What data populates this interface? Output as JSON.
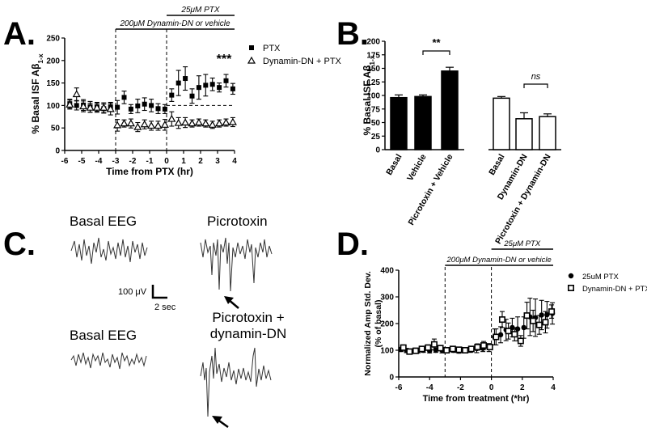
{
  "panels": {
    "a": {
      "letter": "A."
    },
    "b": {
      "letter": "B."
    },
    "c": {
      "letter": "C."
    },
    "d": {
      "letter": "D."
    }
  },
  "eeg": {
    "basal_top": "Basal EEG",
    "picrotoxin": "Picrotoxin",
    "basal_bottom": "Basal EEG",
    "picro_dyn_line1": "Picrotoxin +",
    "picro_dyn_line2": "dynamin-DN",
    "scale_v": "100 μV",
    "scale_t": "2 sec"
  },
  "chart_data": [
    {
      "panel": "A",
      "type": "scatter",
      "xlabel": "Time from PTX (hr)",
      "ylabel": "% Basal ISF Aβ1-x",
      "xlim": [
        -6,
        4
      ],
      "ylim": [
        0,
        250
      ],
      "xticks": [
        -6,
        -5,
        -4,
        -3,
        -2,
        -1,
        0,
        1,
        2,
        3,
        4
      ],
      "yticks": [
        0,
        50,
        100,
        150,
        200,
        250
      ],
      "legend_position": "top-right",
      "annotations": [
        "25μM PTX",
        "200μM Dynamin-DN or vehicle",
        "***"
      ],
      "series": [
        {
          "name": "PTX",
          "marker": "filled-square",
          "x": [
            -5.7,
            -5.3,
            -4.9,
            -4.5,
            -4.1,
            -3.7,
            -3.3,
            -2.9,
            -2.5,
            -2.1,
            -1.7,
            -1.3,
            -0.9,
            -0.5,
            -0.1,
            0.3,
            0.7,
            1.1,
            1.5,
            1.9,
            2.3,
            2.7,
            3.1,
            3.5,
            3.9
          ],
          "y": [
            104,
            100,
            101,
            97,
            97,
            93,
            97,
            96,
            118,
            92,
            99,
            103,
            100,
            93,
            92,
            123,
            150,
            160,
            121,
            140,
            145,
            147,
            140,
            155,
            137
          ],
          "err": [
            10,
            10,
            12,
            12,
            10,
            10,
            10,
            15,
            14,
            10,
            15,
            14,
            14,
            11,
            10,
            14,
            28,
            26,
            16,
            26,
            24,
            14,
            10,
            14,
            12
          ]
        },
        {
          "name": "Dynamin-DN + PTX",
          "marker": "open-triangle",
          "x": [
            -5.7,
            -5.3,
            -4.9,
            -4.5,
            -4.1,
            -3.7,
            -3.3,
            -2.9,
            -2.5,
            -2.1,
            -1.7,
            -1.3,
            -0.9,
            -0.5,
            -0.1,
            0.3,
            0.7,
            1.1,
            1.5,
            1.9,
            2.3,
            2.7,
            3.1,
            3.5,
            3.9
          ],
          "y": [
            102,
            125,
            98,
            95,
            95,
            95,
            92,
            56,
            60,
            60,
            52,
            58,
            55,
            55,
            57,
            70,
            61,
            62,
            60,
            62,
            60,
            57,
            60,
            62,
            63
          ],
          "err": [
            10,
            14,
            12,
            10,
            10,
            11,
            13,
            13,
            8,
            10,
            10,
            10,
            10,
            10,
            12,
            16,
            12,
            11,
            8,
            8,
            8,
            8,
            8,
            8,
            10
          ]
        }
      ]
    },
    {
      "panel": "B",
      "type": "bar",
      "ylabel": "% Basal ISF Aβ1-x",
      "ylim": [
        0,
        200
      ],
      "yticks": [
        0,
        25,
        50,
        75,
        100,
        125,
        150,
        175,
        200
      ],
      "categories": [
        "Basal",
        "Vehicle",
        "Picrotoxin + Vehicle",
        "Basal",
        "Dynamin-DN",
        "Picrotoxin + Dynamin-DN"
      ],
      "values": [
        96,
        98,
        145,
        95,
        57,
        61
      ],
      "err": [
        5,
        3,
        7,
        3,
        11,
        5
      ],
      "fills": [
        "#000000",
        "#000000",
        "#000000",
        "#ffffff",
        "#ffffff",
        "#ffffff"
      ],
      "annotations": [
        "**",
        "ns"
      ]
    },
    {
      "panel": "D",
      "type": "scatter",
      "xlabel": "Time from treatment (*hr)",
      "ylabel": "Normalized Amp Std. Dev. (% of basal)",
      "xlim": [
        -6,
        4
      ],
      "ylim": [
        0,
        400
      ],
      "xticks": [
        -6,
        -4,
        -2,
        0,
        2,
        4
      ],
      "yticks": [
        0,
        100,
        200,
        300,
        400
      ],
      "legend_position": "top-right",
      "annotations": [
        "25μM PTX",
        "200μM Dynamin-DN or vehicle"
      ],
      "series": [
        {
          "name": "25uM PTX",
          "marker": "filled-circle",
          "x": [
            -5.85,
            -5.5,
            -5.15,
            -4.75,
            -4.4,
            -4.0,
            -3.6,
            -3.2,
            -2.85,
            -2.45,
            -2.1,
            -1.7,
            -1.35,
            -0.95,
            -0.55,
            -0.15,
            0.2,
            0.6,
            0.95,
            1.35,
            1.7,
            2.1,
            2.5,
            2.85,
            3.25,
            3.6,
            3.95
          ],
          "y": [
            103,
            99,
            97,
            98,
            100,
            98,
            100,
            100,
            102,
            100,
            97,
            98,
            102,
            106,
            107,
            110,
            150,
            158,
            176,
            185,
            180,
            185,
            225,
            222,
            232,
            233,
            238
          ],
          "err": [
            8,
            8,
            8,
            8,
            8,
            8,
            8,
            10,
            8,
            8,
            8,
            8,
            10,
            15,
            12,
            15,
            30,
            30,
            40,
            35,
            45,
            40,
            70,
            70,
            55,
            50,
            40
          ]
        },
        {
          "name": "Dynamin-DN + PTX",
          "marker": "open-square",
          "x": [
            -5.7,
            -5.3,
            -4.9,
            -4.5,
            -4.1,
            -3.7,
            -3.3,
            -2.9,
            -2.5,
            -2.1,
            -1.7,
            -1.3,
            -0.9,
            -0.5,
            -0.1,
            0.3,
            0.7,
            1.1,
            1.5,
            1.9,
            2.3,
            2.7,
            3.1,
            3.5,
            3.9
          ],
          "y": [
            110,
            95,
            98,
            105,
            110,
            122,
            108,
            100,
            105,
            102,
            100,
            105,
            112,
            118,
            112,
            150,
            215,
            172,
            160,
            135,
            230,
            210,
            195,
            205,
            245
          ],
          "err": [
            10,
            8,
            10,
            10,
            10,
            20,
            10,
            8,
            8,
            10,
            10,
            10,
            12,
            15,
            10,
            30,
            30,
            30,
            25,
            20,
            50,
            40,
            35,
            40,
            25
          ]
        }
      ]
    }
  ]
}
